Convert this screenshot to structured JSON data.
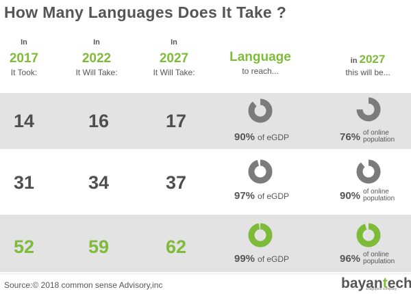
{
  "title": "How Many Languages Does It Take ?",
  "headers": [
    {
      "in": "In",
      "year": "2017",
      "sub": "It Took:"
    },
    {
      "in": "In",
      "year": "2022",
      "sub": "It Will Take:"
    },
    {
      "in": "In",
      "year": "2027",
      "sub": "It Will Take:"
    }
  ],
  "language_header": {
    "title": "Language",
    "sub": "to reach..."
  },
  "future_header": {
    "in": "in",
    "year": "2027",
    "sub": "this will be..."
  },
  "rows": [
    {
      "values": [
        "14",
        "16",
        "17"
      ],
      "gdp_pct": "90%",
      "gdp_label": "of eGDP",
      "gdp_fraction": 0.9,
      "pop_pct": "76%",
      "pop_label_1": "of online",
      "pop_label_2": "population",
      "pop_fraction": 0.76,
      "color": "#7b7b7b",
      "value_color": "gray"
    },
    {
      "values": [
        "31",
        "34",
        "37"
      ],
      "gdp_pct": "97%",
      "gdp_label": "of eGDP",
      "gdp_fraction": 0.97,
      "pop_pct": "90%",
      "pop_label_1": "of online",
      "pop_label_2": "population",
      "pop_fraction": 0.9,
      "color": "#7b7b7b",
      "value_color": "gray"
    },
    {
      "values": [
        "52",
        "59",
        "62"
      ],
      "gdp_pct": "99%",
      "gdp_label": "of eGDP",
      "gdp_fraction": 0.99,
      "pop_pct": "96%",
      "pop_label_1": "of online",
      "pop_label_2": "population",
      "pop_fraction": 0.96,
      "color": "#7dbb39",
      "value_color": "green"
    }
  ],
  "source": "Source:© 2018 common sense Advisory,inc",
  "logo": {
    "part1": "bayan",
    "part2": "t",
    "part3": "ech",
    "tagline": "a tagopost company"
  }
}
